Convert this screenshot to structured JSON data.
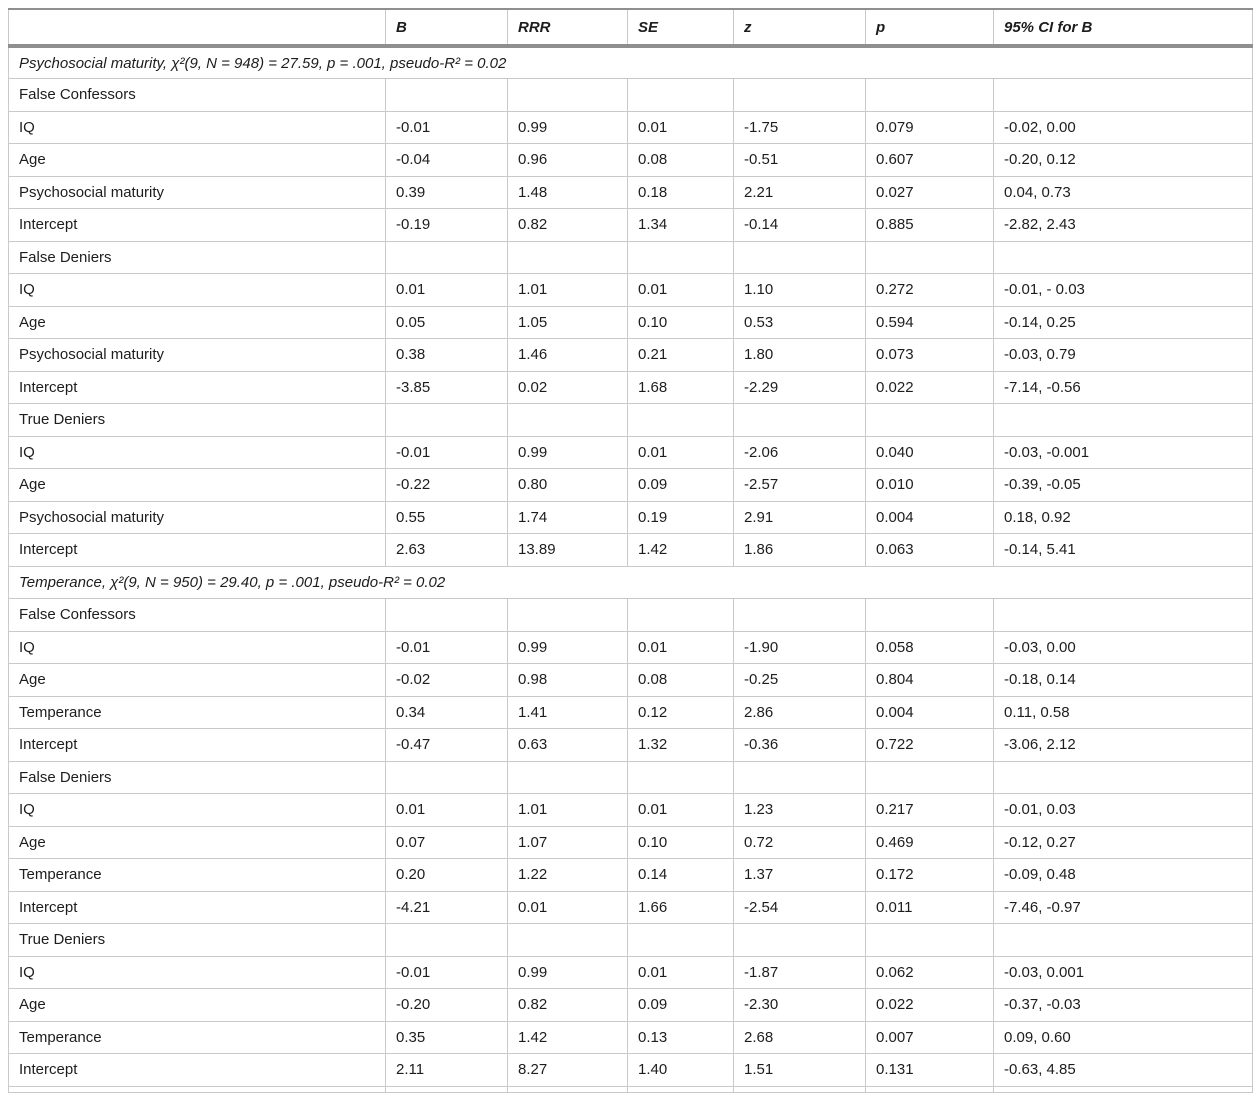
{
  "columns": {
    "label": "",
    "b": "B",
    "rrr": "RRR",
    "se": "SE",
    "z": "z",
    "p": "p",
    "ci": "95% CI for B"
  },
  "colors": {
    "header_rule": "#8f8f8f",
    "grid_line": "#c9c9c9",
    "text": "#1d1d1d",
    "background": "#ffffff"
  },
  "rows": [
    {
      "type": "section",
      "label": "Psychosocial maturity, χ²(9, N = 948) = 27.59, p = .001, pseudo-R² = 0.02"
    },
    {
      "type": "group",
      "label": "False Confessors"
    },
    {
      "type": "data",
      "label": "IQ",
      "b": "-0.01",
      "rrr": "0.99",
      "se": "0.01",
      "z": "-1.75",
      "p": "0.079",
      "ci": "-0.02, 0.00"
    },
    {
      "type": "data",
      "label": "Age",
      "b": "-0.04",
      "rrr": "0.96",
      "se": "0.08",
      "z": "-0.51",
      "p": "0.607",
      "ci": "-0.20, 0.12"
    },
    {
      "type": "data",
      "label": "Psychosocial maturity",
      "b": "0.39",
      "rrr": "1.48",
      "se": "0.18",
      "z": "2.21",
      "p": "0.027",
      "ci": "0.04, 0.73"
    },
    {
      "type": "data",
      "label": "Intercept",
      "b": "-0.19",
      "rrr": "0.82",
      "se": "1.34",
      "z": "-0.14",
      "p": "0.885",
      "ci": "-2.82, 2.43"
    },
    {
      "type": "group",
      "label": "False Deniers"
    },
    {
      "type": "data",
      "label": "IQ",
      "b": "0.01",
      "rrr": "1.01",
      "se": "0.01",
      "z": "1.10",
      "p": "0.272",
      "ci": "-0.01, - 0.03"
    },
    {
      "type": "data",
      "label": "Age",
      "b": "0.05",
      "rrr": "1.05",
      "se": "0.10",
      "z": "0.53",
      "p": "0.594",
      "ci": "-0.14, 0.25"
    },
    {
      "type": "data",
      "label": "Psychosocial maturity",
      "b": "0.38",
      "rrr": "1.46",
      "se": "0.21",
      "z": "1.80",
      "p": "0.073",
      "ci": "-0.03, 0.79"
    },
    {
      "type": "data",
      "label": "Intercept",
      "b": "-3.85",
      "rrr": "0.02",
      "se": "1.68",
      "z": "-2.29",
      "p": "0.022",
      "ci": "-7.14, -0.56"
    },
    {
      "type": "group",
      "label": "True Deniers"
    },
    {
      "type": "data",
      "label": "IQ",
      "b": "-0.01",
      "rrr": "0.99",
      "se": "0.01",
      "z": "-2.06",
      "p": "0.040",
      "ci": "-0.03, -0.001"
    },
    {
      "type": "data",
      "label": "Age",
      "b": "-0.22",
      "rrr": "0.80",
      "se": "0.09",
      "z": "-2.57",
      "p": "0.010",
      "ci": "-0.39, -0.05"
    },
    {
      "type": "data",
      "label": "Psychosocial maturity",
      "b": "0.55",
      "rrr": "1.74",
      "se": "0.19",
      "z": "2.91",
      "p": "0.004",
      "ci": "0.18, 0.92"
    },
    {
      "type": "data",
      "label": "Intercept",
      "b": "2.63",
      "rrr": "13.89",
      "se": "1.42",
      "z": "1.86",
      "p": "0.063",
      "ci": "-0.14, 5.41"
    },
    {
      "type": "section",
      "label": "Temperance, χ²(9, N = 950) = 29.40, p = .001, pseudo-R² = 0.02"
    },
    {
      "type": "group",
      "label": "False Confessors"
    },
    {
      "type": "data",
      "label": "IQ",
      "b": "-0.01",
      "rrr": "0.99",
      "se": "0.01",
      "z": "-1.90",
      "p": "0.058",
      "ci": "-0.03, 0.00"
    },
    {
      "type": "data",
      "label": "Age",
      "b": "-0.02",
      "rrr": "0.98",
      "se": "0.08",
      "z": "-0.25",
      "p": "0.804",
      "ci": "-0.18, 0.14"
    },
    {
      "type": "data",
      "label": "Temperance",
      "b": "0.34",
      "rrr": "1.41",
      "se": "0.12",
      "z": "2.86",
      "p": "0.004",
      "ci": "0.11, 0.58"
    },
    {
      "type": "data",
      "label": "Intercept",
      "b": "-0.47",
      "rrr": "0.63",
      "se": "1.32",
      "z": "-0.36",
      "p": "0.722",
      "ci": "-3.06, 2.12"
    },
    {
      "type": "group",
      "label": "False Deniers"
    },
    {
      "type": "data",
      "label": "IQ",
      "b": "0.01",
      "rrr": "1.01",
      "se": "0.01",
      "z": "1.23",
      "p": "0.217",
      "ci": "-0.01, 0.03"
    },
    {
      "type": "data",
      "label": "Age",
      "b": "0.07",
      "rrr": "1.07",
      "se": "0.10",
      "z": "0.72",
      "p": "0.469",
      "ci": "-0.12, 0.27"
    },
    {
      "type": "data",
      "label": "Temperance",
      "b": "0.20",
      "rrr": "1.22",
      "se": "0.14",
      "z": "1.37",
      "p": "0.172",
      "ci": "-0.09, 0.48"
    },
    {
      "type": "data",
      "label": "Intercept",
      "b": "-4.21",
      "rrr": "0.01",
      "se": "1.66",
      "z": "-2.54",
      "p": "0.011",
      "ci": "-7.46, -0.97"
    },
    {
      "type": "group",
      "label": "True Deniers"
    },
    {
      "type": "data",
      "label": "IQ",
      "b": "-0.01",
      "rrr": "0.99",
      "se": "0.01",
      "z": "-1.87",
      "p": "0.062",
      "ci": "-0.03, 0.001"
    },
    {
      "type": "data",
      "label": "Age",
      "b": "-0.20",
      "rrr": "0.82",
      "se": "0.09",
      "z": "-2.30",
      "p": "0.022",
      "ci": "-0.37, -0.03"
    },
    {
      "type": "data",
      "label": "Temperance",
      "b": "0.35",
      "rrr": "1.42",
      "se": "0.13",
      "z": "2.68",
      "p": "0.007",
      "ci": "0.09, 0.60"
    },
    {
      "type": "data",
      "label": "Intercept",
      "b": "2.11",
      "rrr": "8.27",
      "se": "1.40",
      "z": "1.51",
      "p": "0.131",
      "ci": "-0.63, 4.85"
    }
  ]
}
